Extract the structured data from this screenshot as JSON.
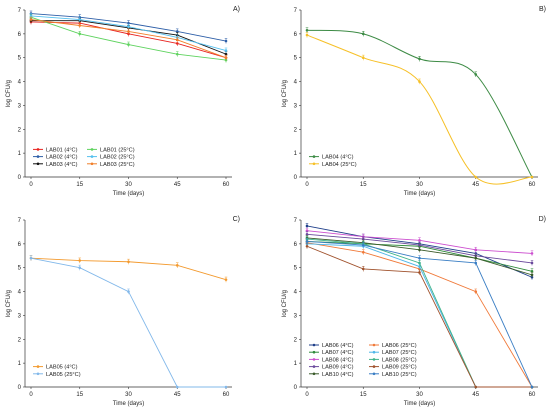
{
  "chart_data": [
    {
      "type": "line",
      "panel_label": "A)",
      "xlabel": "Time (days)",
      "ylabel": "log CFU/g",
      "x": [
        0,
        15,
        30,
        45,
        60
      ],
      "xlim": [
        0,
        60
      ],
      "ylim": [
        0,
        7
      ],
      "yticks": [
        0,
        1,
        2,
        3,
        4,
        5,
        6,
        7
      ],
      "grid": false,
      "legend_position": "bottom-left",
      "legend_columns": 2,
      "series": [
        {
          "name": "LAB01 (4°C)",
          "color": "#e8231f",
          "values": [
            6.5,
            6.45,
            6.0,
            5.6,
            5.0
          ]
        },
        {
          "name": "LAB02 (4°C)",
          "color": "#2e5fa8",
          "values": [
            6.85,
            6.7,
            6.45,
            6.1,
            5.7
          ]
        },
        {
          "name": "LAB03 (4°C)",
          "color": "#111111",
          "values": [
            6.55,
            6.55,
            6.25,
            5.95,
            5.15
          ]
        },
        {
          "name": "LAB01 (25°C)",
          "color": "#5fd35f",
          "values": [
            6.7,
            6.0,
            5.55,
            5.15,
            4.9
          ]
        },
        {
          "name": "LAB02 (25°C)",
          "color": "#55c0ee",
          "values": [
            6.75,
            6.6,
            6.3,
            5.85,
            5.3
          ]
        },
        {
          "name": "LAB03 (25°C)",
          "color": "#f07f2a",
          "values": [
            6.6,
            6.35,
            6.1,
            5.75,
            5.0
          ]
        }
      ]
    },
    {
      "type": "line",
      "panel_label": "B)",
      "xlabel": "Time (days)",
      "ylabel": "log CFU/g",
      "x": [
        0,
        15,
        30,
        45,
        60
      ],
      "xlim": [
        0,
        60
      ],
      "ylim": [
        0,
        7
      ],
      "yticks": [
        0,
        1,
        2,
        3,
        4,
        5,
        6,
        7
      ],
      "grid": false,
      "legend_position": "bottom-left",
      "legend_columns": 1,
      "smooth": true,
      "series": [
        {
          "name": "LAB04 (4°C)",
          "color": "#3d8b45",
          "values": [
            6.15,
            6.0,
            4.95,
            4.3,
            0
          ]
        },
        {
          "name": "LAB04 (25°C)",
          "color": "#f6c027",
          "values": [
            5.95,
            5.0,
            4.0,
            0,
            0
          ]
        }
      ]
    },
    {
      "type": "line",
      "panel_label": "C)",
      "xlabel": "Time (days)",
      "ylabel": "log CFU/g",
      "x": [
        0,
        15,
        30,
        45,
        60
      ],
      "xlim": [
        0,
        60
      ],
      "ylim": [
        0,
        7
      ],
      "yticks": [
        0,
        1,
        2,
        3,
        4,
        5,
        6,
        7
      ],
      "grid": false,
      "legend_position": "bottom-left",
      "legend_columns": 1,
      "series": [
        {
          "name": "LAB05 (4°C)",
          "color": "#f39a2e",
          "values": [
            5.4,
            5.3,
            5.25,
            5.1,
            4.5
          ]
        },
        {
          "name": "LAB05 (25°C)",
          "color": "#82b8ea",
          "values": [
            5.4,
            5.0,
            4.0,
            0,
            0
          ]
        }
      ]
    },
    {
      "type": "line",
      "panel_label": "D)",
      "xlabel": "Time (days)",
      "ylabel": "log CFU/g",
      "x": [
        0,
        15,
        30,
        45,
        60
      ],
      "xlim": [
        0,
        60
      ],
      "ylim": [
        0,
        7
      ],
      "yticks": [
        0,
        1,
        2,
        3,
        4,
        5,
        6,
        7
      ],
      "grid": false,
      "legend_position": "bottom-left",
      "legend_columns": 2,
      "series": [
        {
          "name": "LAB06 (4°C)",
          "color": "#1f3f8a",
          "values": [
            6.75,
            6.3,
            6.0,
            5.6,
            4.6
          ]
        },
        {
          "name": "LAB07 (4°C)",
          "color": "#2e8a3a",
          "values": [
            6.1,
            6.0,
            5.9,
            5.4,
            4.85
          ]
        },
        {
          "name": "LAB08 (4°C)",
          "color": "#cc4fcf",
          "values": [
            6.55,
            6.3,
            6.15,
            5.75,
            5.6
          ]
        },
        {
          "name": "LAB09 (4°C)",
          "color": "#6a4a9c",
          "values": [
            6.4,
            6.2,
            5.95,
            5.5,
            5.2
          ]
        },
        {
          "name": "LAB10 (4°C)",
          "color": "#3a5a2a",
          "values": [
            6.25,
            6.05,
            5.75,
            5.4,
            4.7
          ]
        },
        {
          "name": "LAB06 (25°C)",
          "color": "#f07a3a",
          "values": [
            6.05,
            5.65,
            4.95,
            4.0,
            0
          ]
        },
        {
          "name": "LAB07 (25°C)",
          "color": "#4fb6e8",
          "values": [
            6.0,
            5.9,
            5.05,
            0,
            0
          ]
        },
        {
          "name": "LAB08 (25°C)",
          "color": "#3fb38a",
          "values": [
            6.2,
            6.0,
            5.2,
            0,
            0
          ]
        },
        {
          "name": "LAB09 (25°C)",
          "color": "#a0522d",
          "values": [
            5.9,
            4.95,
            4.8,
            0,
            0
          ]
        },
        {
          "name": "LAB10 (25°C)",
          "color": "#3a7ec4",
          "values": [
            6.1,
            5.95,
            5.4,
            5.2,
            0
          ]
        }
      ]
    }
  ]
}
